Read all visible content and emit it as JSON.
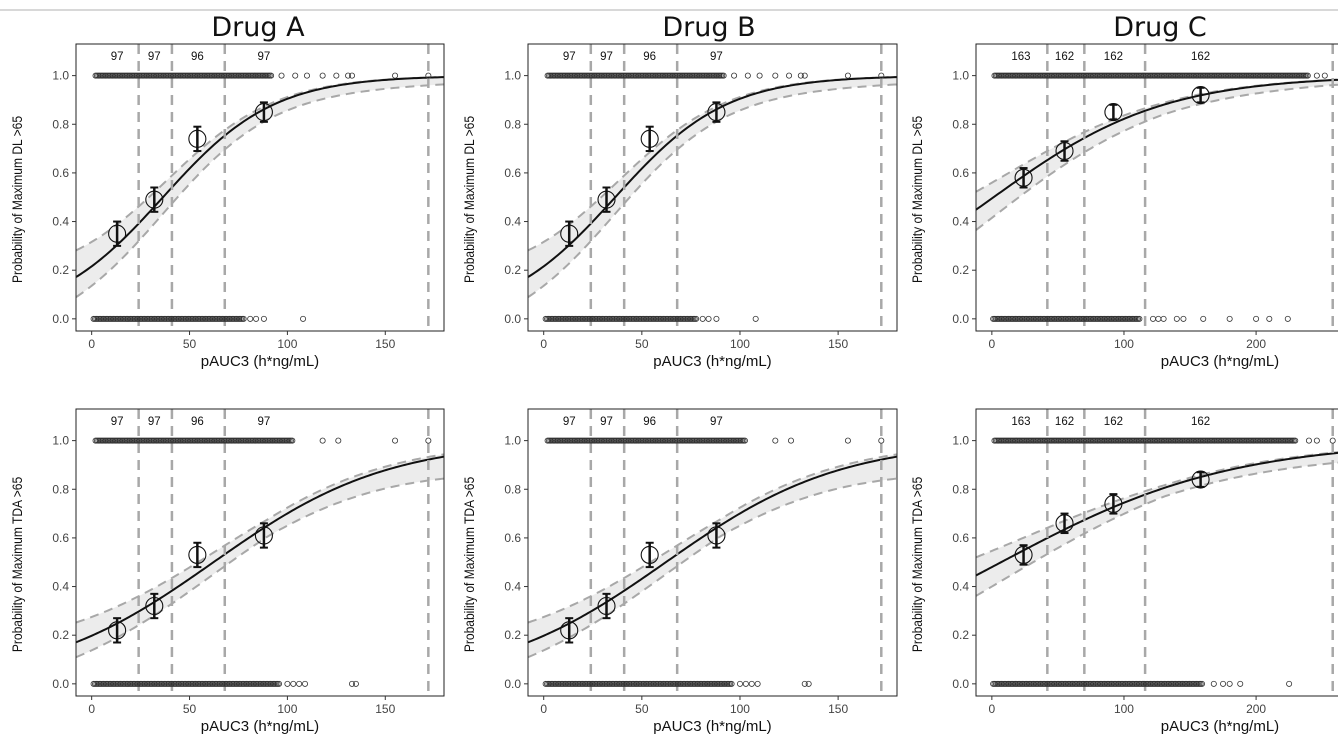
{
  "figure": {
    "columns": [
      {
        "title": "Drug A"
      },
      {
        "title": "Drug B"
      },
      {
        "title": "Drug C"
      }
    ]
  },
  "chart_data": [
    {
      "id": "drugA-dl",
      "type": "scatter",
      "title": "Drug A",
      "xlabel": "pAUC3 (h*ng/mL)",
      "ylabel": "Probability of Maximum DL >65",
      "xlim": [
        -8,
        180
      ],
      "ylim": [
        -0.05,
        1.13
      ],
      "x_ticks": [
        0,
        50,
        100,
        150
      ],
      "y_ticks": [
        0.0,
        0.2,
        0.4,
        0.6,
        0.8,
        1.0
      ],
      "quartile_cutoffs": [
        24,
        41,
        68,
        172
      ],
      "bin_counts": [
        {
          "x": 13,
          "label": "97"
        },
        {
          "x": 32,
          "label": "97"
        },
        {
          "x": 54,
          "label": "96"
        },
        {
          "x": 88,
          "label": "97"
        }
      ],
      "logistic_fit": {
        "intercept": -1.29,
        "slope": 0.0354,
        "ci_halfwidth_at_0": 0.08,
        "ci_halfwidth_mid": 0.05,
        "ci_halfwidth_at_end": 0.03
      },
      "observed_bins": [
        {
          "x": 13,
          "p": 0.35,
          "lo": 0.3,
          "hi": 0.4
        },
        {
          "x": 32,
          "p": 0.49,
          "lo": 0.44,
          "hi": 0.54
        },
        {
          "x": 54,
          "p": 0.74,
          "lo": 0.69,
          "hi": 0.79
        },
        {
          "x": 88,
          "p": 0.85,
          "lo": 0.81,
          "hi": 0.89
        }
      ],
      "raw_ones": {
        "dense_from": 2,
        "dense_to": 92,
        "sparse": [
          97,
          104,
          110,
          118,
          125,
          131,
          133,
          155,
          172
        ]
      },
      "raw_zeros": {
        "dense_from": 1,
        "dense_to": 78,
        "sparse": [
          81,
          84,
          88,
          108
        ]
      }
    },
    {
      "id": "drugB-dl",
      "type": "scatter",
      "title": "Drug B",
      "xlabel": "pAUC3 (h*ng/mL)",
      "ylabel": "Probability of Maximum DL >65",
      "xlim": [
        -8,
        180
      ],
      "ylim": [
        -0.05,
        1.13
      ],
      "x_ticks": [
        0,
        50,
        100,
        150
      ],
      "y_ticks": [
        0.0,
        0.2,
        0.4,
        0.6,
        0.8,
        1.0
      ],
      "quartile_cutoffs": [
        24,
        41,
        68,
        172
      ],
      "bin_counts": [
        {
          "x": 13,
          "label": "97"
        },
        {
          "x": 32,
          "label": "97"
        },
        {
          "x": 54,
          "label": "96"
        },
        {
          "x": 88,
          "label": "97"
        }
      ],
      "logistic_fit": {
        "intercept": -1.29,
        "slope": 0.0354,
        "ci_halfwidth_at_0": 0.08,
        "ci_halfwidth_mid": 0.05,
        "ci_halfwidth_at_end": 0.03
      },
      "observed_bins": [
        {
          "x": 13,
          "p": 0.35,
          "lo": 0.3,
          "hi": 0.4
        },
        {
          "x": 32,
          "p": 0.49,
          "lo": 0.44,
          "hi": 0.54
        },
        {
          "x": 54,
          "p": 0.74,
          "lo": 0.69,
          "hi": 0.79
        },
        {
          "x": 88,
          "p": 0.85,
          "lo": 0.81,
          "hi": 0.89
        }
      ],
      "raw_ones": {
        "dense_from": 2,
        "dense_to": 92,
        "sparse": [
          97,
          104,
          110,
          118,
          125,
          131,
          133,
          155,
          172
        ]
      },
      "raw_zeros": {
        "dense_from": 1,
        "dense_to": 78,
        "sparse": [
          81,
          84,
          88,
          108
        ]
      }
    },
    {
      "id": "drugC-dl",
      "type": "scatter",
      "title": "Drug C",
      "xlabel": "pAUC3 (h*ng/mL)",
      "ylabel": "Probability of Maximum DL >65",
      "xlim": [
        -12,
        262
      ],
      "ylim": [
        -0.05,
        1.13
      ],
      "x_ticks": [
        0,
        100,
        200
      ],
      "y_ticks": [
        0.0,
        0.2,
        0.4,
        0.6,
        0.8,
        1.0
      ],
      "quartile_cutoffs": [
        42,
        70,
        116,
        258
      ],
      "bin_counts": [
        {
          "x": 22,
          "label": "163"
        },
        {
          "x": 55,
          "label": "162"
        },
        {
          "x": 92,
          "label": "162"
        },
        {
          "x": 158,
          "label": "162"
        }
      ],
      "logistic_fit": {
        "intercept": -0.02,
        "slope": 0.0155,
        "ci_halfwidth_at_0": 0.08,
        "ci_halfwidth_mid": 0.04,
        "ci_halfwidth_at_end": 0.02
      },
      "observed_bins": [
        {
          "x": 24,
          "p": 0.58,
          "lo": 0.54,
          "hi": 0.62
        },
        {
          "x": 55,
          "p": 0.69,
          "lo": 0.65,
          "hi": 0.73
        },
        {
          "x": 92,
          "p": 0.85,
          "lo": 0.82,
          "hi": 0.88
        },
        {
          "x": 158,
          "p": 0.92,
          "lo": 0.89,
          "hi": 0.95
        }
      ],
      "raw_ones": {
        "dense_from": 2,
        "dense_to": 240,
        "sparse": [
          246,
          252
        ]
      },
      "raw_zeros": {
        "dense_from": 1,
        "dense_to": 112,
        "sparse": [
          122,
          126,
          130,
          140,
          145,
          160,
          180,
          200,
          210,
          224
        ]
      }
    },
    {
      "id": "drugA-tda",
      "type": "scatter",
      "title": "Drug A",
      "xlabel": "pAUC3 (h*ng/mL)",
      "ylabel": "Probability of Maximum TDA >65",
      "xlim": [
        -8,
        180
      ],
      "ylim": [
        -0.05,
        1.13
      ],
      "x_ticks": [
        0,
        50,
        100,
        150
      ],
      "y_ticks": [
        0.0,
        0.2,
        0.4,
        0.6,
        0.8,
        1.0
      ],
      "quartile_cutoffs": [
        24,
        41,
        68,
        172
      ],
      "bin_counts": [
        {
          "x": 13,
          "label": "97"
        },
        {
          "x": 32,
          "label": "97"
        },
        {
          "x": 54,
          "label": "96"
        },
        {
          "x": 88,
          "label": "97"
        }
      ],
      "logistic_fit": {
        "intercept": -1.4,
        "slope": 0.0225,
        "ci_halfwidth_at_0": 0.06,
        "ci_halfwidth_mid": 0.045,
        "ci_halfwidth_at_end": 0.09
      },
      "observed_bins": [
        {
          "x": 13,
          "p": 0.22,
          "lo": 0.17,
          "hi": 0.27
        },
        {
          "x": 32,
          "p": 0.32,
          "lo": 0.27,
          "hi": 0.37
        },
        {
          "x": 54,
          "p": 0.53,
          "lo": 0.48,
          "hi": 0.58
        },
        {
          "x": 88,
          "p": 0.61,
          "lo": 0.56,
          "hi": 0.66
        }
      ],
      "raw_ones": {
        "dense_from": 2,
        "dense_to": 103,
        "sparse": [
          118,
          126,
          155,
          172
        ]
      },
      "raw_zeros": {
        "dense_from": 1,
        "dense_to": 96,
        "sparse": [
          100,
          103,
          106,
          109,
          133,
          135
        ]
      }
    },
    {
      "id": "drugB-tda",
      "type": "scatter",
      "title": "Drug B",
      "xlabel": "pAUC3 (h*ng/mL)",
      "ylabel": "Probability of Maximum TDA >65",
      "xlim": [
        -8,
        180
      ],
      "ylim": [
        -0.05,
        1.13
      ],
      "x_ticks": [
        0,
        50,
        100,
        150
      ],
      "y_ticks": [
        0.0,
        0.2,
        0.4,
        0.6,
        0.8,
        1.0
      ],
      "quartile_cutoffs": [
        24,
        41,
        68,
        172
      ],
      "bin_counts": [
        {
          "x": 13,
          "label": "97"
        },
        {
          "x": 32,
          "label": "97"
        },
        {
          "x": 54,
          "label": "96"
        },
        {
          "x": 88,
          "label": "97"
        }
      ],
      "logistic_fit": {
        "intercept": -1.4,
        "slope": 0.0225,
        "ci_halfwidth_at_0": 0.06,
        "ci_halfwidth_mid": 0.045,
        "ci_halfwidth_at_end": 0.09
      },
      "observed_bins": [
        {
          "x": 13,
          "p": 0.22,
          "lo": 0.17,
          "hi": 0.27
        },
        {
          "x": 32,
          "p": 0.32,
          "lo": 0.27,
          "hi": 0.37
        },
        {
          "x": 54,
          "p": 0.53,
          "lo": 0.48,
          "hi": 0.58
        },
        {
          "x": 88,
          "p": 0.61,
          "lo": 0.56,
          "hi": 0.66
        }
      ],
      "raw_ones": {
        "dense_from": 2,
        "dense_to": 103,
        "sparse": [
          118,
          126,
          155,
          172
        ]
      },
      "raw_zeros": {
        "dense_from": 1,
        "dense_to": 96,
        "sparse": [
          100,
          103,
          106,
          109,
          133,
          135
        ]
      }
    },
    {
      "id": "drugC-tda",
      "type": "scatter",
      "title": "Drug C",
      "xlabel": "pAUC3 (h*ng/mL)",
      "ylabel": "Probability of Maximum TDA >65",
      "xlim": [
        -12,
        262
      ],
      "ylim": [
        -0.05,
        1.13
      ],
      "x_ticks": [
        0,
        100,
        200
      ],
      "y_ticks": [
        0.0,
        0.2,
        0.4,
        0.6,
        0.8,
        1.0
      ],
      "quartile_cutoffs": [
        42,
        70,
        116,
        258
      ],
      "bin_counts": [
        {
          "x": 22,
          "label": "163"
        },
        {
          "x": 55,
          "label": "162"
        },
        {
          "x": 92,
          "label": "162"
        },
        {
          "x": 158,
          "label": "162"
        }
      ],
      "logistic_fit": {
        "intercept": -0.08,
        "slope": 0.0115,
        "ci_halfwidth_at_0": 0.08,
        "ci_halfwidth_mid": 0.035,
        "ci_halfwidth_at_end": 0.04
      },
      "observed_bins": [
        {
          "x": 24,
          "p": 0.53,
          "lo": 0.49,
          "hi": 0.57
        },
        {
          "x": 55,
          "p": 0.66,
          "lo": 0.62,
          "hi": 0.7
        },
        {
          "x": 92,
          "p": 0.74,
          "lo": 0.7,
          "hi": 0.78
        },
        {
          "x": 158,
          "p": 0.84,
          "lo": 0.81,
          "hi": 0.87
        }
      ],
      "raw_ones": {
        "dense_from": 2,
        "dense_to": 230,
        "sparse": [
          240,
          246,
          258
        ]
      },
      "raw_zeros": {
        "dense_from": 1,
        "dense_to": 160,
        "sparse": [
          168,
          175,
          180,
          188,
          225
        ]
      }
    }
  ]
}
